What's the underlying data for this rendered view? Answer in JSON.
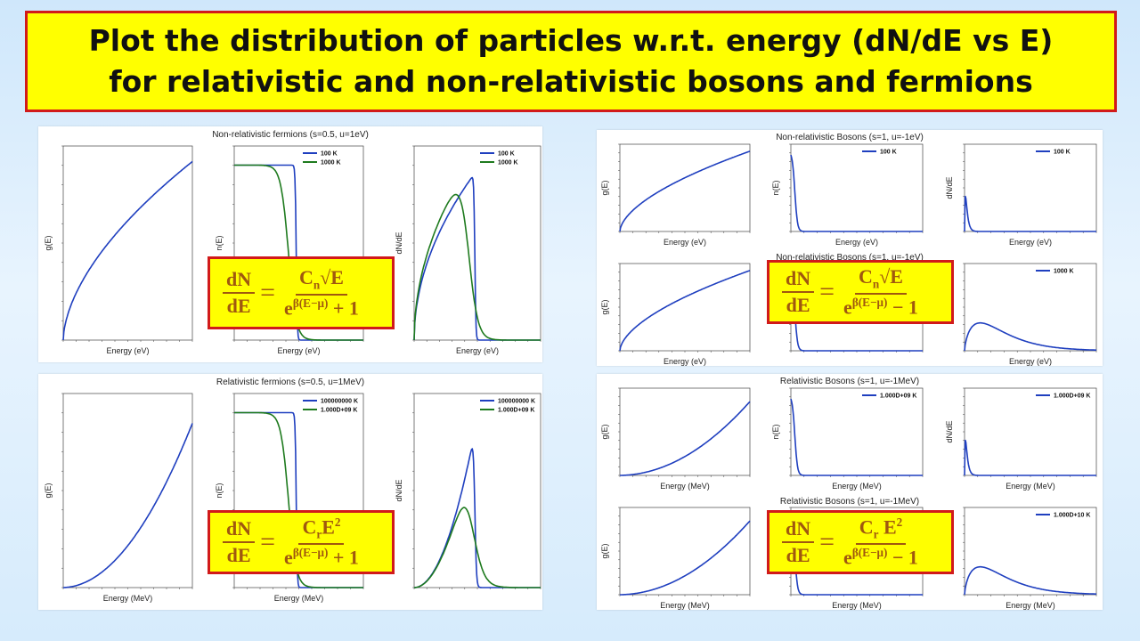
{
  "slide": {
    "title_line1": "Plot the distribution of  particles w.r.t. energy (dN/dE vs E)",
    "title_line2": "for relativistic and non-relativistic bosons and fermions"
  },
  "colors": {
    "title_bg": "#ffff00",
    "title_border": "#d11a1a",
    "formula_text": "#a0580f",
    "blue": "#1f3fbf",
    "green": "#1e7a1e"
  },
  "formulas": [
    {
      "id": "nr_fermion",
      "num": "C",
      "num_sub": "n",
      "num_rest": "√E",
      "den_base": "e",
      "den_sup": "β(E−μ)",
      "den_op": "+ 1"
    },
    {
      "id": "nr_boson",
      "num": "C",
      "num_sub": "n",
      "num_rest": "√E",
      "den_base": "e",
      "den_sup": "β(E−μ)",
      "den_op": "− 1"
    },
    {
      "id": "r_fermion",
      "num": "C",
      "num_sub": "r",
      "num_rest": "E",
      "num_sup": "2",
      "den_base": "e",
      "den_sup": "β(E−μ)",
      "den_op": "+ 1"
    },
    {
      "id": "r_boson",
      "num": "C",
      "num_sub": "r",
      "num_rest": " E",
      "num_sup": "2",
      "den_base": "e",
      "den_sup": "β(E−μ)",
      "den_op": "− 1"
    }
  ],
  "formula_lhs": {
    "num": "dN",
    "den": "dE",
    "eq": "="
  },
  "chart_data": [
    {
      "panel": "nr_fermions",
      "title": "Non-relativistic fermions (s=0.5, u=1eV)",
      "subplots": [
        {
          "type": "line",
          "ylabel": "g(E)",
          "xlabel": "Energy (eV)",
          "shape": "sqrt",
          "series": []
        },
        {
          "type": "line",
          "ylabel": "n(E)",
          "xlabel": "Energy (eV)",
          "shape": "fermi",
          "series": [
            {
              "name": "100 K",
              "color": "#1f3fbf"
            },
            {
              "name": "1000 K",
              "color": "#1e7a1e"
            }
          ]
        },
        {
          "type": "line",
          "ylabel": "dN/dE",
          "xlabel": "Energy (eV)",
          "shape": "fermi_dist",
          "series": [
            {
              "name": "100 K",
              "color": "#1f3fbf"
            },
            {
              "name": "1000 K",
              "color": "#1e7a1e"
            }
          ]
        }
      ]
    },
    {
      "panel": "r_fermions",
      "title": "Relativistic fermions (s=0.5, u=1MeV)",
      "subplots": [
        {
          "type": "line",
          "ylabel": "g(E)",
          "xlabel": "Energy (MeV)",
          "shape": "square",
          "series": []
        },
        {
          "type": "line",
          "ylabel": "n(E)",
          "xlabel": "Energy (MeV)",
          "shape": "fermi",
          "series": [
            {
              "name": "100000000 K",
              "color": "#1f3fbf"
            },
            {
              "name": "1.000D+09 K",
              "color": "#1e7a1e"
            }
          ]
        },
        {
          "type": "line",
          "ylabel": "dN/dE",
          "xlabel": "",
          "shape": "fermi_dist_r",
          "series": [
            {
              "name": "100000000 K",
              "color": "#1f3fbf"
            },
            {
              "name": "1.000D+09 K",
              "color": "#1e7a1e"
            }
          ]
        }
      ]
    },
    {
      "panel": "nr_bosons",
      "title": "Non-relativistic Bosons (s=1, u=-1eV)",
      "title2": "Non-relativistic Bosons (s=1, u=-1eV)",
      "subplots": [
        {
          "type": "line",
          "ylabel": "g(E)",
          "xlabel": "Energy (eV)",
          "shape": "sqrt",
          "series": []
        },
        {
          "type": "line",
          "ylabel": "n(E)",
          "xlabel": "Energy (eV)",
          "shape": "bose",
          "series": [
            {
              "name": "100 K",
              "color": "#1f3fbf"
            }
          ]
        },
        {
          "type": "line",
          "ylabel": "dN/dE",
          "xlabel": "Energy (eV)",
          "shape": "bose_dist",
          "series": [
            {
              "name": "100 K",
              "color": "#1f3fbf"
            }
          ]
        },
        {
          "type": "line",
          "ylabel": "g(E)",
          "xlabel": "Energy (eV)",
          "shape": "sqrt",
          "series": []
        },
        {
          "type": "line",
          "ylabel": "",
          "xlabel": "",
          "shape": "bose",
          "series": []
        },
        {
          "type": "line",
          "ylabel": "",
          "xlabel": "Energy (eV)",
          "shape": "bose_wide",
          "series": [
            {
              "name": "1000 K",
              "color": "#1f3fbf"
            }
          ]
        }
      ]
    },
    {
      "panel": "r_bosons",
      "title": "Relativistic Bosons (s=1, u=-1MeV)",
      "title2": "Relativistic Bosons (s=1, u=-1MeV)",
      "subplots": [
        {
          "type": "line",
          "ylabel": "g(E)",
          "xlabel": "Energy (MeV)",
          "shape": "square",
          "series": []
        },
        {
          "type": "line",
          "ylabel": "n(E)",
          "xlabel": "Energy (MeV)",
          "shape": "bose",
          "series": [
            {
              "name": "1.000D+09 K",
              "color": "#1f3fbf"
            }
          ]
        },
        {
          "type": "line",
          "ylabel": "dN/dE",
          "xlabel": "Energy (MeV)",
          "shape": "bose_dist",
          "series": [
            {
              "name": "1.000D+09 K",
              "color": "#1f3fbf"
            }
          ]
        },
        {
          "type": "line",
          "ylabel": "g(E)",
          "xlabel": "Energy (MeV)",
          "shape": "square",
          "series": []
        },
        {
          "type": "line",
          "ylabel": "",
          "xlabel": "Energy (MeV)",
          "shape": "bose",
          "series": []
        },
        {
          "type": "line",
          "ylabel": "",
          "xlabel": "Energy (MeV)",
          "shape": "bose_wide",
          "series": [
            {
              "name": "1.000D+10 K",
              "color": "#1f3fbf"
            }
          ]
        }
      ]
    }
  ]
}
